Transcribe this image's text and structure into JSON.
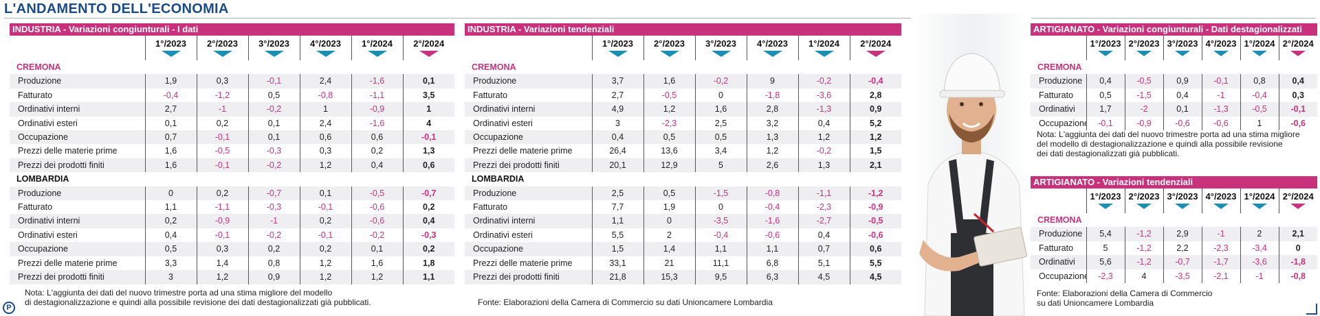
{
  "title": "L'ANDAMENTO DELL'ECONOMIA",
  "colors": {
    "accent": "#c8327d",
    "arrow": "#1b8fb3",
    "title": "#1a4a8a"
  },
  "t1": {
    "header": "INDUSTRIA - Variazioni congiunturali  - I dati",
    "periods": [
      "1°/2023",
      "2°/2023",
      "3°/2023",
      "4°/2023",
      "1°/2024",
      "2°/2024"
    ],
    "sec1": "CREMONA",
    "sec2": "LOMBARDIA",
    "cremona": [
      {
        "label": "Produzione",
        "v": [
          "1,9",
          "0,3",
          "-0,1",
          "2,4",
          "-1,6",
          "0,1"
        ]
      },
      {
        "label": "Fatturato",
        "v": [
          "-0,4",
          "-1,2",
          "0,5",
          "-0,8",
          "-1,1",
          "3,5"
        ]
      },
      {
        "label": "Ordinativi interni",
        "v": [
          "2,7",
          "-1",
          "-0,2",
          "1",
          "-0,9",
          "1"
        ]
      },
      {
        "label": "Ordinativi esteri",
        "v": [
          "0,1",
          "0,2",
          "0,1",
          "2,4",
          "-1,6",
          "4"
        ]
      },
      {
        "label": "Occupazione",
        "v": [
          "0,7",
          "-0,1",
          "0,1",
          "0,6",
          "0,6",
          "-0,1"
        ]
      },
      {
        "label": "Prezzi delle materie prime",
        "v": [
          "1,6",
          "-0,5",
          "-0,3",
          "0,3",
          "0,2",
          "1,3"
        ]
      },
      {
        "label": "Prezzi dei prodotti finiti",
        "v": [
          "1,6",
          "-0,1",
          "-0,2",
          "1,2",
          "0,4",
          "0,6"
        ]
      }
    ],
    "lombardia": [
      {
        "label": "Produzione",
        "v": [
          "0",
          "0,2",
          "-0,7",
          "0,1",
          "-0,5",
          "-0,7"
        ]
      },
      {
        "label": "Fatturato",
        "v": [
          "1,1",
          "-1,1",
          "-0,3",
          "-0,1",
          "-0,6",
          "0,2"
        ]
      },
      {
        "label": "Ordinativi interni",
        "v": [
          "0,2",
          "-0,9",
          "-1",
          "0,2",
          "-0,6",
          "0,4"
        ]
      },
      {
        "label": "Ordinativi esteri",
        "v": [
          "0,4",
          "-0,1",
          "-0,2",
          "-0,1",
          "-0,2",
          "-0,3"
        ]
      },
      {
        "label": "Occupazione",
        "v": [
          "0,5",
          "0,3",
          "0,2",
          "0,2",
          "0,1",
          "0,2"
        ]
      },
      {
        "label": "Prezzi delle materie prime",
        "v": [
          "3,3",
          "1,4",
          "0,8",
          "1,2",
          "1,6",
          "1,8"
        ]
      },
      {
        "label": "Prezzi dei prodotti finiti",
        "v": [
          "3",
          "1,2",
          "0,9",
          "1,2",
          "1,2",
          "1,1"
        ]
      }
    ],
    "note": "Nota: L'aggiunta dei dati del nuovo trimestre porta ad una stima migliore del modello\ndi destagionalizzazione e quindi alla possibile revisione dei dati destagionalizzati già pubblicati."
  },
  "t2": {
    "header": "INDUSTRIA - Variazioni tendenziali",
    "periods": [
      "1°/2023",
      "2°/2023",
      "3°/2023",
      "4°/2023",
      "1°/2024",
      "2°/2024"
    ],
    "sec1": "CREMONA",
    "sec2": "LOMBARDIA",
    "cremona": [
      {
        "label": "Produzione",
        "v": [
          "3,7",
          "1,6",
          "-0,2",
          "9",
          "-0,2",
          "-0,4"
        ]
      },
      {
        "label": "Fatturato",
        "v": [
          "2,7",
          "-0,5",
          "0",
          "-1,8",
          "-3,6",
          "2,8"
        ]
      },
      {
        "label": "Ordinativi interni",
        "v": [
          "4,9",
          "1,2",
          "1,6",
          "2,8",
          "-1,3",
          "0,9"
        ]
      },
      {
        "label": "Ordinativi esteri",
        "v": [
          "3",
          "-2,3",
          "2,5",
          "3,2",
          "0,4",
          "5,2"
        ]
      },
      {
        "label": "Occupazione",
        "v": [
          "0,4",
          "0,5",
          "0,5",
          "1,3",
          "1,2",
          "1,2"
        ]
      },
      {
        "label": "Prezzi delle materie prime",
        "v": [
          "26,4",
          "13,6",
          "3,4",
          "1,2",
          "-0,2",
          "1,5"
        ]
      },
      {
        "label": "Prezzi dei prodotti finiti",
        "v": [
          "20,1",
          "12,9",
          "5",
          "2,6",
          "1,3",
          "2,1"
        ]
      }
    ],
    "lombardia": [
      {
        "label": "Produzione",
        "v": [
          "2,5",
          "0,5",
          "-1,5",
          "-0,8",
          "-1,1",
          "-1,2"
        ]
      },
      {
        "label": "Fatturato",
        "v": [
          "7,7",
          "1,9",
          "0",
          "-0,4",
          "-2,3",
          "-0,9"
        ]
      },
      {
        "label": "Ordinativi interni",
        "v": [
          "1,1",
          "0",
          "-3,5",
          "-1,6",
          "-2,7",
          "-0,5"
        ]
      },
      {
        "label": "Ordinativi esteri",
        "v": [
          "5,5",
          "2",
          "-0,4",
          "-0,6",
          "0,4",
          "-0,6"
        ]
      },
      {
        "label": "Occupazione",
        "v": [
          "1,5",
          "1,4",
          "1,1",
          "1,1",
          "0,7",
          "0,6"
        ]
      },
      {
        "label": "Prezzi delle materie prime",
        "v": [
          "33,1",
          "21",
          "11,1",
          "6,8",
          "5,1",
          "5,5"
        ]
      },
      {
        "label": "Prezzi dei prodotti finiti",
        "v": [
          "21,8",
          "15,3",
          "9,5",
          "6,3",
          "4,5",
          "4,5"
        ]
      }
    ],
    "source": "Fonte: Elaborazioni della Camera di Commercio su dati Unioncamere Lombardia"
  },
  "t3": {
    "header": "ARTIGIANATO - Variazioni congiunturali - Dati destagionalizzati",
    "periods": [
      "1°/2023",
      "2°/2023",
      "3°/2023",
      "4°/2023",
      "1°/2024",
      "2°/2024"
    ],
    "sec1": "CREMONA",
    "rows": [
      {
        "label": "Produzione",
        "v": [
          "0,4",
          "-0,5",
          "0,9",
          "-0,1",
          "0,8",
          "0,4"
        ]
      },
      {
        "label": "Fatturato",
        "v": [
          "0,5",
          "-1,5",
          "0,4",
          "-1",
          "-0,4",
          "0,3"
        ]
      },
      {
        "label": "Ordinativi",
        "v": [
          "1,7",
          "-2",
          "0,1",
          "-1,3",
          "-0,5",
          "-0,1"
        ]
      },
      {
        "label": "Occupazione",
        "v": [
          "-0,1",
          "-0,9",
          "-0,6",
          "-0,6",
          "1",
          "-0,6"
        ]
      }
    ],
    "note": "Nota: L'aggiunta dei dati del nuovo trimestre porta ad una stima migliore\ndel modello di destagionalizzazione e quindi alla possibile revisione\ndei dati destagionalizzati già pubblicati."
  },
  "t4": {
    "header": "ARTIGIANATO - Variazioni tendenziali",
    "periods": [
      "1°/2023",
      "2°/2023",
      "3°/2023",
      "4°/2023",
      "1°/2024",
      "2°/2024"
    ],
    "sec1": "CREMONA",
    "rows": [
      {
        "label": "Produzione",
        "v": [
          "5,4",
          "-1,2",
          "2,9",
          "-1",
          "2",
          "2,1"
        ]
      },
      {
        "label": "Fatturato",
        "v": [
          "5",
          "-1,2",
          "2,2",
          "-2,3",
          "-3,4",
          "0"
        ]
      },
      {
        "label": "Ordinativi",
        "v": [
          "5,6",
          "-1,2",
          "-0,7",
          "-1,7",
          "-3,6",
          "-1,8"
        ]
      },
      {
        "label": "Occupazione",
        "v": [
          "-2,3",
          "4",
          "-3,5",
          "-2,1",
          "-1",
          "-0,8"
        ]
      }
    ],
    "source": "Fonte: Elaborazioni della Camera di Commercio\nsu dati Unioncamere Lombardia"
  },
  "logo_letter": "P"
}
